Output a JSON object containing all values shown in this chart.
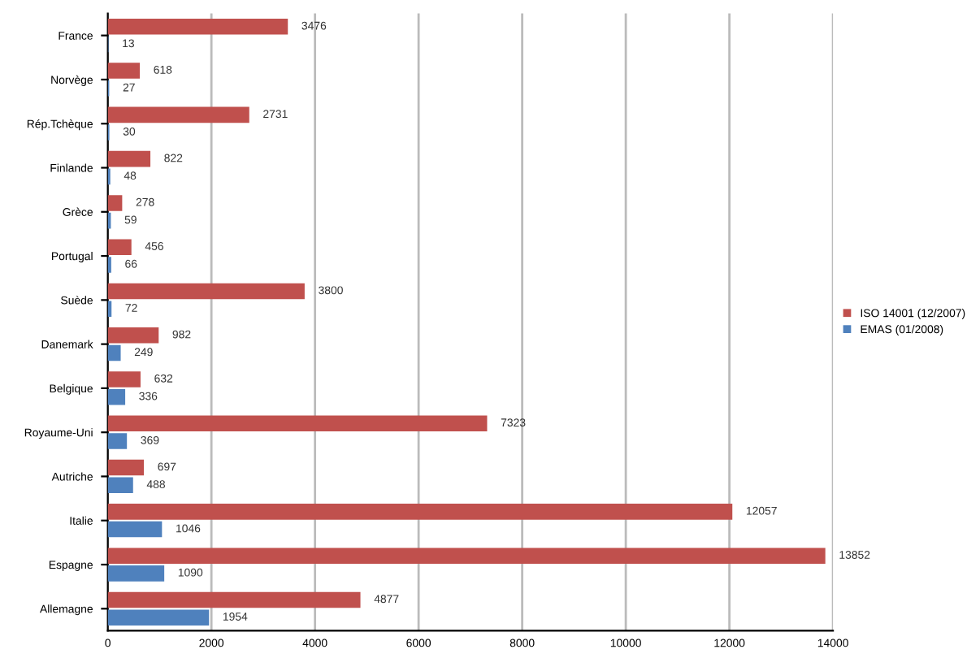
{
  "chart_data": {
    "type": "bar",
    "orientation": "horizontal",
    "categories": [
      "France",
      "Norvège",
      "Rép.Tchèque",
      "Finlande",
      "Grèce",
      "Portugal",
      "Suède",
      "Danemark",
      "Belgique",
      "Royaume-Uni",
      "Autriche",
      "Italie",
      "Espagne",
      "Allemagne"
    ],
    "series": [
      {
        "name": "ISO 14001 (12/2007)",
        "color": "#c0504d",
        "values": [
          3476,
          618,
          2731,
          822,
          278,
          456,
          3800,
          982,
          632,
          7323,
          697,
          12057,
          13852,
          4877
        ]
      },
      {
        "name": "EMAS (01/2008)",
        "color": "#4f81bd",
        "values": [
          13,
          27,
          30,
          48,
          59,
          66,
          72,
          249,
          336,
          369,
          488,
          1046,
          1090,
          1954
        ]
      }
    ],
    "xlim": [
      0,
      14000
    ],
    "xticks": [
      0,
      2000,
      4000,
      6000,
      8000,
      10000,
      12000,
      14000
    ],
    "grid": "x",
    "legend": "right",
    "data_labels": true
  }
}
